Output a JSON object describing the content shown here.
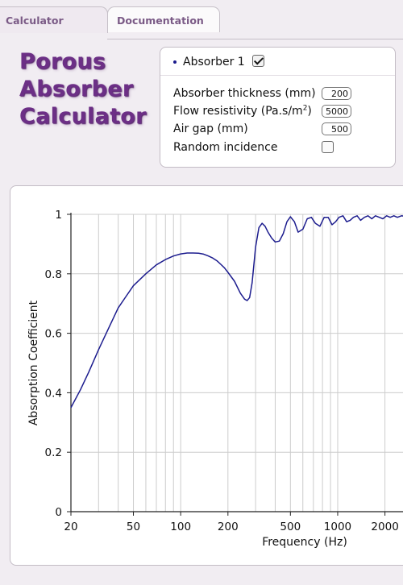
{
  "tabs": [
    {
      "label": "Calculator",
      "active": true
    },
    {
      "label": "Documentation",
      "active": false
    }
  ],
  "title_lines": [
    "Porous",
    "Absorber",
    "Calculator"
  ],
  "absorber": {
    "label": "Absorber 1",
    "enabled": true,
    "thickness_label": "Absorber thickness (mm)",
    "thickness_value": "200",
    "resistivity_label_main": "Flow resistivity (Pa.s/m",
    "resistivity_label_sup": "2",
    "resistivity_label_end": ")",
    "resistivity_value": "5000",
    "airgap_label": "Air gap (mm)",
    "airgap_value": "500",
    "random_label": "Random incidence",
    "random_checked": false
  },
  "colors": {
    "title": "#6c2f86",
    "curve": "#1c1c8e",
    "grid": "#cccccc"
  },
  "chart_data": {
    "type": "line",
    "xlabel": "Frequency (Hz)",
    "ylabel": "Absorption Coefficient",
    "x_scale": "log",
    "xlim": [
      20,
      2700
    ],
    "ylim": [
      0,
      1
    ],
    "x_ticks": [
      20,
      50,
      100,
      200,
      500,
      1000,
      2000
    ],
    "x_tick_labels": [
      "20",
      "50",
      "100",
      "200",
      "500",
      "1000",
      "2000"
    ],
    "y_ticks": [
      0,
      0.2,
      0.4,
      0.6,
      0.8,
      1
    ],
    "y_tick_labels": [
      "0",
      "0.2",
      "0.4",
      "0.6",
      "0.8",
      "1"
    ],
    "grid": true,
    "series": [
      {
        "x": [
          20,
          23,
          26,
          30,
          35,
          40,
          45,
          50,
          60,
          70,
          80,
          90,
          100,
          110,
          120,
          130,
          140,
          150,
          160,
          170,
          180,
          190,
          200,
          220,
          240,
          255,
          265,
          275,
          285,
          300,
          315,
          330,
          345,
          360,
          380,
          400,
          425,
          450,
          475,
          500,
          530,
          560,
          600,
          640,
          680,
          720,
          770,
          820,
          870,
          920,
          970,
          1020,
          1080,
          1140,
          1200,
          1260,
          1330,
          1400,
          1480,
          1560,
          1650,
          1740,
          1840,
          1940,
          2050,
          2160,
          2280,
          2400,
          2550,
          2700
        ],
        "y": [
          0.35,
          0.41,
          0.47,
          0.545,
          0.62,
          0.685,
          0.725,
          0.76,
          0.8,
          0.83,
          0.848,
          0.86,
          0.867,
          0.87,
          0.87,
          0.869,
          0.866,
          0.86,
          0.853,
          0.844,
          0.832,
          0.82,
          0.805,
          0.775,
          0.735,
          0.715,
          0.71,
          0.72,
          0.77,
          0.89,
          0.955,
          0.97,
          0.96,
          0.94,
          0.92,
          0.907,
          0.91,
          0.935,
          0.975,
          0.992,
          0.975,
          0.94,
          0.95,
          0.985,
          0.99,
          0.97,
          0.96,
          0.99,
          0.99,
          0.965,
          0.975,
          0.99,
          0.995,
          0.975,
          0.98,
          0.99,
          0.995,
          0.98,
          0.99,
          0.995,
          0.985,
          0.995,
          0.99,
          0.985,
          0.995,
          0.99,
          0.995,
          0.99,
          0.995,
          0.993
        ]
      }
    ]
  }
}
